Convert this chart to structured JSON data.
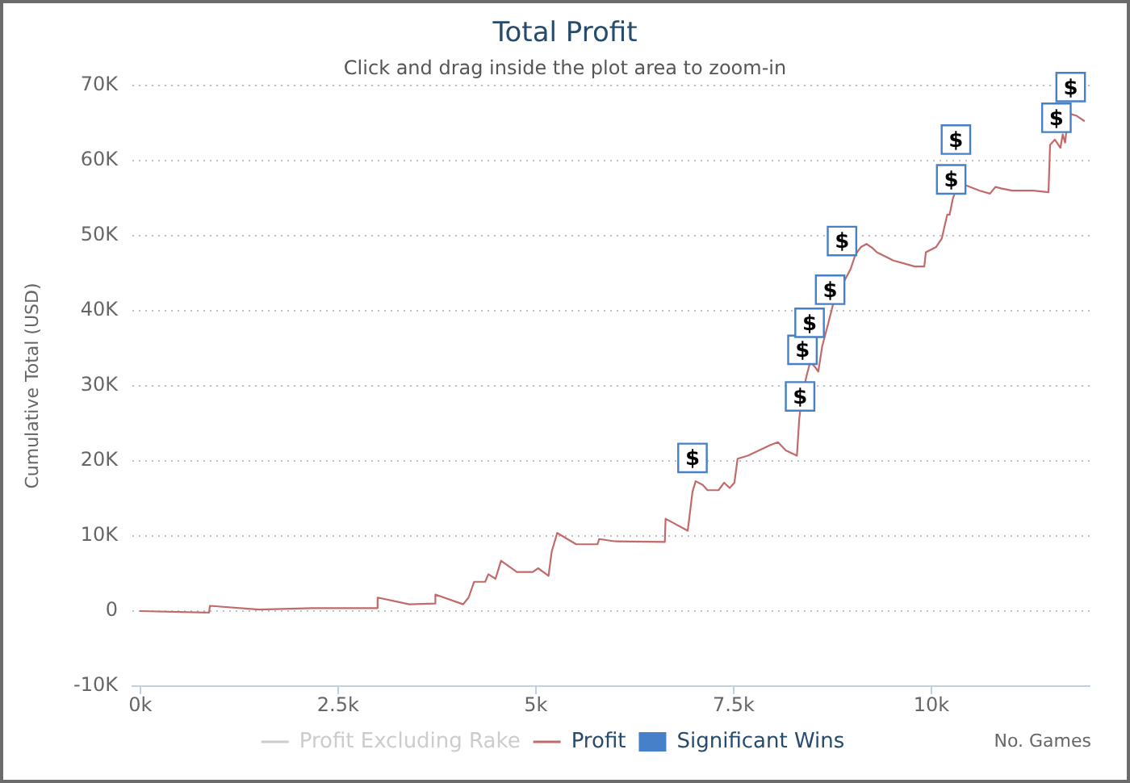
{
  "chart_data": {
    "type": "line",
    "title": "Total Profit",
    "subtitle": "Click and drag inside the plot area to zoom-in",
    "xlabel": "No. Games",
    "ylabel": "Cumulative Total (USD)",
    "xlim": [
      -100,
      12000
    ],
    "xticks": [
      {
        "value": 0,
        "label": "0k"
      },
      {
        "value": 2500,
        "label": "2.5k"
      },
      {
        "value": 5000,
        "label": "5k"
      },
      {
        "value": 7500,
        "label": "7.5k"
      },
      {
        "value": 10000,
        "label": "10k"
      }
    ],
    "ylim": [
      -10000,
      70000
    ],
    "yticks": [
      {
        "value": -10000,
        "label": "-10K"
      },
      0,
      {
        "value": 10000,
        "label": "10K"
      },
      {
        "value": 20000,
        "label": "20K"
      },
      {
        "value": 30000,
        "label": "30K"
      },
      {
        "value": 40000,
        "label": "40K"
      },
      {
        "value": 50000,
        "label": "50K"
      },
      {
        "value": 60000,
        "label": "60K"
      },
      {
        "value": 70000,
        "label": "70K"
      }
    ],
    "grid": "y",
    "legend": "bottom",
    "series": [
      {
        "name": "Profit Excluding Rake",
        "type": "line",
        "color": "#cccccc"
      },
      {
        "name": "Profit",
        "type": "line",
        "color": "#c26a6a",
        "x": [
          0,
          870,
          880,
          1500,
          2170,
          2990,
          3000,
          3400,
          3720,
          3730,
          4080,
          4150,
          4220,
          4360,
          4400,
          4490,
          4560,
          4760,
          4960,
          5030,
          5160,
          5200,
          5270,
          5510,
          5780,
          5800,
          5990,
          6630,
          6640,
          6920,
          6980,
          7020,
          7110,
          7170,
          7310,
          7380,
          7450,
          7510,
          7550,
          7680,
          7820,
          7960,
          8060,
          8160,
          8300,
          8330,
          8370,
          8430,
          8470,
          8530,
          8570,
          8620,
          8700,
          8770,
          8980,
          9040,
          9110,
          9180,
          9250,
          9310,
          9520,
          9790,
          9910,
          9930,
          10060,
          10130,
          10200,
          10230,
          10270,
          10310,
          10440,
          10610,
          10740,
          10810,
          10880,
          11020,
          11290,
          11480,
          11500,
          11560,
          11630,
          11660,
          11690,
          11730,
          11830,
          11930
        ],
        "values": [
          0,
          -200,
          700,
          200,
          400,
          400,
          1800,
          900,
          1000,
          2200,
          900,
          1800,
          3900,
          3900,
          4900,
          4300,
          6700,
          5200,
          5200,
          5700,
          4700,
          7900,
          10400,
          8900,
          8900,
          9600,
          9300,
          9200,
          12300,
          10700,
          15900,
          17300,
          16800,
          16100,
          16100,
          17100,
          16400,
          17100,
          20300,
          20700,
          21400,
          22100,
          22500,
          21400,
          20700,
          25700,
          28900,
          31700,
          33200,
          32500,
          31900,
          35300,
          38500,
          41400,
          45600,
          47500,
          48500,
          48900,
          48400,
          47800,
          46700,
          45900,
          45900,
          47800,
          48500,
          49600,
          52800,
          52800,
          54900,
          56100,
          56700,
          56000,
          55600,
          56500,
          56300,
          56000,
          56000,
          55800,
          62100,
          62800,
          61700,
          63500,
          62400,
          66300,
          66000,
          65300
        ]
      },
      {
        "name": "Significant Wins",
        "type": "scatter",
        "marker": "square",
        "color": "#4680c8",
        "x": [
          6980,
          8340,
          8370,
          8460,
          8720,
          8870,
          10250,
          10310,
          11580,
          11760
        ],
        "values": [
          20400,
          28600,
          34800,
          38400,
          42800,
          49300,
          57500,
          62800,
          65700,
          69800
        ],
        "value_labels": [
          "$",
          "$",
          "$",
          "$",
          "$",
          "$",
          "$",
          "$",
          "$",
          "$"
        ]
      }
    ]
  }
}
